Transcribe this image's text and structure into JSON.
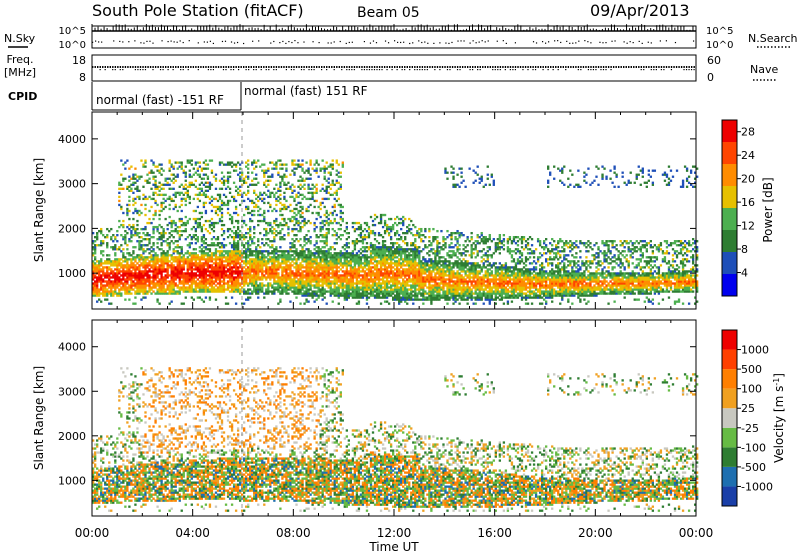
{
  "header": {
    "station": "South Pole Station (fitACF)",
    "beam": "Beam 05",
    "date": "09/Apr/2013"
  },
  "labels": {
    "nsky": "N.Sky",
    "nsearch": "N.Search",
    "freq_line1": "Freq.",
    "freq_line2": "[MHz]",
    "nave": "Nave",
    "cpid": "CPID",
    "nsky_top_tick": "10^5",
    "nsky_bottom_tick": "10^0",
    "nsearch_top_tick": "10^5",
    "nsearch_bottom_tick": "10^0",
    "freq_top_tick": "18",
    "freq_bottom_tick": "8",
    "nave_top_tick": "60",
    "nave_bottom_tick": "0"
  },
  "cpid_segments": [
    {
      "label": "normal (fast) -151 RF",
      "start_hour": 0,
      "end_hour": 6
    },
    {
      "label": "normal (fast) 151 RF",
      "start_hour": 6,
      "end_hour": 24
    }
  ],
  "chart_data": [
    {
      "type": "heatmap",
      "name": "power-panel",
      "ylabel": "Slant Range [km]",
      "xlabel": "Time UT",
      "xlim_hours": [
        0,
        24
      ],
      "ylim_km": [
        200,
        4600
      ],
      "x_ticks": [
        "00:00",
        "04:00",
        "08:00",
        "12:00",
        "16:00",
        "20:00",
        "00:00"
      ],
      "y_ticks": [
        1000,
        2000,
        3000,
        4000
      ],
      "colorbar": {
        "label": "Power [dB]",
        "ticks": [
          4,
          8,
          12,
          16,
          20,
          24,
          28
        ],
        "range": [
          0,
          30
        ],
        "colors": [
          "#0000ee",
          "#1e4fb8",
          "#2e7d32",
          "#4caf50",
          "#e6c000",
          "#ff8c00",
          "#ff4500",
          "#ee0000"
        ]
      }
    },
    {
      "type": "heatmap",
      "name": "velocity-panel",
      "ylabel": "Slant Range [km]",
      "xlabel": "Time UT",
      "xlim_hours": [
        0,
        24
      ],
      "ylim_km": [
        200,
        4600
      ],
      "x_ticks": [
        "00:00",
        "04:00",
        "08:00",
        "12:00",
        "16:00",
        "20:00",
        "00:00"
      ],
      "y_ticks": [
        1000,
        2000,
        3000,
        4000
      ],
      "colorbar": {
        "label": "Velocity [m s^-1]",
        "ticks": [
          "1000",
          "500",
          "100",
          "25",
          "-25",
          "-100",
          "-500",
          "-1000"
        ],
        "colors": [
          "#1a3fa8",
          "#1e6fb0",
          "#2e7d32",
          "#66bb44",
          "#c8c8c0",
          "#f0a020",
          "#ff7f00",
          "#ff4000",
          "#ee0000"
        ]
      }
    }
  ]
}
